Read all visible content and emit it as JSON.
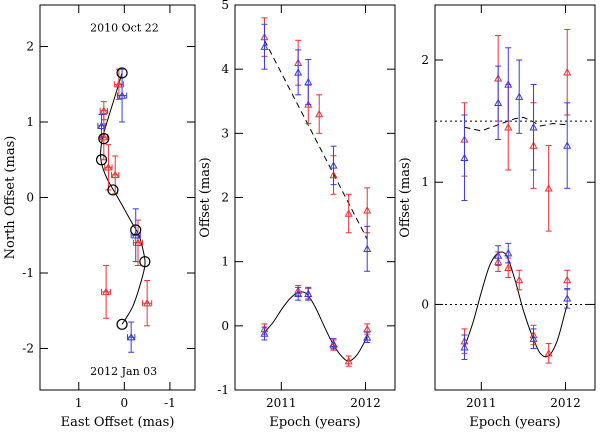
{
  "colors": {
    "red": "#ee3030",
    "blue": "#3a3ae0",
    "black": "#000000"
  },
  "chart_data": [
    {
      "type": "scatter",
      "xlabel": "East Offset (mas)",
      "ylabel": "North Offset (mas)",
      "xlim": [
        1.85,
        -1.55
      ],
      "ylim": [
        -2.55,
        2.55
      ],
      "xticks": [
        1,
        0,
        -1
      ],
      "yticks": [
        -2,
        -1,
        0,
        1,
        2
      ],
      "annotations": [
        {
          "text": "2010 Oct 22",
          "x": 0.75,
          "y": 2.2
        },
        {
          "text": "2012 Jan 03",
          "x": 0.75,
          "y": -2.35
        }
      ],
      "red_points": [
        {
          "x": 0.45,
          "y": 1.15,
          "xerr": 0.08,
          "yerr": 0.12
        },
        {
          "x": 0.45,
          "y": 0.8,
          "xerr": 0.08,
          "yerr": 0.3
        },
        {
          "x": 0.35,
          "y": 0.4,
          "xerr": 0.08,
          "yerr": 0.3
        },
        {
          "x": 0.2,
          "y": 0.3,
          "xerr": 0.08,
          "yerr": 0.25
        },
        {
          "x": 0.12,
          "y": 1.5,
          "xerr": 0.1,
          "yerr": 0.2
        },
        {
          "x": -0.3,
          "y": -0.6,
          "xerr": 0.1,
          "yerr": 0.3
        },
        {
          "x": 0.4,
          "y": -1.25,
          "xerr": 0.1,
          "yerr": 0.35
        },
        {
          "x": -0.5,
          "y": -1.4,
          "xerr": 0.1,
          "yerr": 0.3
        }
      ],
      "blue_points": [
        {
          "x": 0.5,
          "y": 0.95,
          "xerr": 0.08,
          "yerr": 0.15
        },
        {
          "x": 0.05,
          "y": 1.35,
          "xerr": 0.1,
          "yerr": 0.35
        },
        {
          "x": -0.25,
          "y": -0.5,
          "xerr": 0.1,
          "yerr": 0.35
        },
        {
          "x": -0.15,
          "y": -1.85,
          "xerr": 0.08,
          "yerr": 0.2
        }
      ],
      "circles": [
        {
          "x": 0.05,
          "y": 1.65
        },
        {
          "x": 0.45,
          "y": 0.78
        },
        {
          "x": 0.5,
          "y": 0.5
        },
        {
          "x": 0.25,
          "y": 0.1
        },
        {
          "x": -0.25,
          "y": -0.43
        },
        {
          "x": -0.45,
          "y": -0.85
        },
        {
          "x": 0.05,
          "y": -1.68
        }
      ],
      "model_curve": [
        [
          0.05,
          1.65
        ],
        [
          0.2,
          1.35
        ],
        [
          0.38,
          1.0
        ],
        [
          0.48,
          0.78
        ],
        [
          0.52,
          0.6
        ],
        [
          0.5,
          0.45
        ],
        [
          0.38,
          0.25
        ],
        [
          0.22,
          0.08
        ],
        [
          0.05,
          -0.1
        ],
        [
          -0.18,
          -0.35
        ],
        [
          -0.32,
          -0.5
        ],
        [
          -0.43,
          -0.75
        ],
        [
          -0.45,
          -0.9
        ],
        [
          -0.35,
          -1.15
        ],
        [
          -0.18,
          -1.45
        ],
        [
          0.05,
          -1.68
        ]
      ]
    },
    {
      "type": "scatter",
      "xlabel": "Epoch (years)",
      "ylabel": "Offset (mas)",
      "xlim": [
        2010.45,
        2012.35
      ],
      "ylim": [
        -1,
        5
      ],
      "xticks": [
        2011,
        2012
      ],
      "yticks": [
        -1,
        0,
        1,
        2,
        3,
        4,
        5
      ],
      "red_points": [
        {
          "x": 2010.8,
          "y": 4.5,
          "yerr": 0.3
        },
        {
          "x": 2011.2,
          "y": 4.1,
          "yerr": 0.35
        },
        {
          "x": 2011.32,
          "y": 3.45,
          "yerr": 0.3
        },
        {
          "x": 2011.45,
          "y": 3.3,
          "yerr": 0.3
        },
        {
          "x": 2011.62,
          "y": 2.35,
          "yerr": 0.3
        },
        {
          "x": 2011.8,
          "y": 1.75,
          "yerr": 0.3
        },
        {
          "x": 2012.02,
          "y": 1.8,
          "yerr": 0.35
        },
        {
          "x": 2010.8,
          "y": -0.05,
          "yerr": 0.08
        },
        {
          "x": 2011.2,
          "y": 0.55,
          "yerr": 0.08
        },
        {
          "x": 2011.32,
          "y": 0.5,
          "yerr": 0.08
        },
        {
          "x": 2011.62,
          "y": -0.3,
          "yerr": 0.08
        },
        {
          "x": 2011.8,
          "y": -0.55,
          "yerr": 0.08
        },
        {
          "x": 2012.02,
          "y": -0.05,
          "yerr": 0.08
        }
      ],
      "blue_points": [
        {
          "x": 2010.8,
          "y": 4.35,
          "yerr": 0.35
        },
        {
          "x": 2011.2,
          "y": 3.95,
          "yerr": 0.35
        },
        {
          "x": 2011.32,
          "y": 3.8,
          "yerr": 0.35
        },
        {
          "x": 2011.62,
          "y": 2.5,
          "yerr": 0.3
        },
        {
          "x": 2012.02,
          "y": 1.2,
          "yerr": 0.35
        },
        {
          "x": 2010.8,
          "y": -0.12,
          "yerr": 0.1
        },
        {
          "x": 2011.2,
          "y": 0.5,
          "yerr": 0.1
        },
        {
          "x": 2011.32,
          "y": 0.5,
          "yerr": 0.1
        },
        {
          "x": 2011.62,
          "y": -0.28,
          "yerr": 0.08
        },
        {
          "x": 2012.02,
          "y": -0.18,
          "yerr": 0.08
        }
      ],
      "dashed_trend": [
        [
          2010.8,
          4.45
        ],
        [
          2012.02,
          1.35
        ]
      ],
      "model_curve": [
        [
          2010.8,
          -0.1
        ],
        [
          2010.9,
          0.05
        ],
        [
          2011.0,
          0.25
        ],
        [
          2011.1,
          0.42
        ],
        [
          2011.2,
          0.52
        ],
        [
          2011.3,
          0.5
        ],
        [
          2011.4,
          0.3
        ],
        [
          2011.5,
          0.02
        ],
        [
          2011.6,
          -0.25
        ],
        [
          2011.7,
          -0.45
        ],
        [
          2011.8,
          -0.55
        ],
        [
          2011.9,
          -0.45
        ],
        [
          2012.0,
          -0.22
        ],
        [
          2012.02,
          -0.15
        ]
      ]
    },
    {
      "type": "scatter",
      "xlabel": "Epoch (years)",
      "ylabel": "Offset (mas)",
      "xlim": [
        2010.45,
        2012.35
      ],
      "ylim": [
        -0.7,
        2.45
      ],
      "xticks": [
        2011,
        2012
      ],
      "yticks": [
        0,
        1,
        2
      ],
      "dotted_levels": [
        1.5,
        0
      ],
      "red_points": [
        {
          "x": 2010.8,
          "y": 1.35,
          "yerr": 0.3
        },
        {
          "x": 2011.2,
          "y": 1.85,
          "yerr": 0.35
        },
        {
          "x": 2011.32,
          "y": 1.45,
          "yerr": 0.35
        },
        {
          "x": 2011.62,
          "y": 1.3,
          "yerr": 0.35
        },
        {
          "x": 2011.8,
          "y": 0.95,
          "yerr": 0.35
        },
        {
          "x": 2012.02,
          "y": 1.9,
          "yerr": 0.35
        },
        {
          "x": 2010.8,
          "y": -0.3,
          "yerr": 0.1
        },
        {
          "x": 2011.2,
          "y": 0.35,
          "yerr": 0.08
        },
        {
          "x": 2011.32,
          "y": 0.3,
          "yerr": 0.08
        },
        {
          "x": 2011.45,
          "y": 0.2,
          "yerr": 0.08
        },
        {
          "x": 2011.62,
          "y": -0.25,
          "yerr": 0.08
        },
        {
          "x": 2011.8,
          "y": -0.4,
          "yerr": 0.08
        },
        {
          "x": 2012.02,
          "y": 0.2,
          "yerr": 0.08
        }
      ],
      "blue_points": [
        {
          "x": 2010.8,
          "y": 1.2,
          "yerr": 0.35
        },
        {
          "x": 2011.2,
          "y": 1.65,
          "yerr": 0.3
        },
        {
          "x": 2011.32,
          "y": 1.8,
          "yerr": 0.3
        },
        {
          "x": 2011.45,
          "y": 1.7,
          "yerr": 0.3
        },
        {
          "x": 2011.62,
          "y": 1.45,
          "yerr": 0.35
        },
        {
          "x": 2012.02,
          "y": 1.3,
          "yerr": 0.35
        },
        {
          "x": 2010.8,
          "y": -0.35,
          "yerr": 0.1
        },
        {
          "x": 2011.2,
          "y": 0.4,
          "yerr": 0.08
        },
        {
          "x": 2011.32,
          "y": 0.42,
          "yerr": 0.08
        },
        {
          "x": 2011.62,
          "y": -0.28,
          "yerr": 0.08
        },
        {
          "x": 2012.02,
          "y": 0.05,
          "yerr": 0.08
        }
      ],
      "dashed_trend": [
        [
          2010.8,
          1.45
        ],
        [
          2011.0,
          1.42
        ],
        [
          2011.2,
          1.47
        ],
        [
          2011.4,
          1.52
        ],
        [
          2011.5,
          1.53
        ],
        [
          2011.6,
          1.5
        ],
        [
          2011.7,
          1.46
        ],
        [
          2011.85,
          1.48
        ],
        [
          2012.02,
          1.47
        ]
      ],
      "model_curve": [
        [
          2010.8,
          -0.35
        ],
        [
          2010.9,
          -0.15
        ],
        [
          2011.0,
          0.1
        ],
        [
          2011.1,
          0.32
        ],
        [
          2011.2,
          0.42
        ],
        [
          2011.3,
          0.4
        ],
        [
          2011.4,
          0.2
        ],
        [
          2011.5,
          -0.05
        ],
        [
          2011.6,
          -0.25
        ],
        [
          2011.7,
          -0.4
        ],
        [
          2011.8,
          -0.42
        ],
        [
          2011.9,
          -0.3
        ],
        [
          2012.0,
          -0.05
        ],
        [
          2012.02,
          0.0
        ]
      ]
    }
  ]
}
